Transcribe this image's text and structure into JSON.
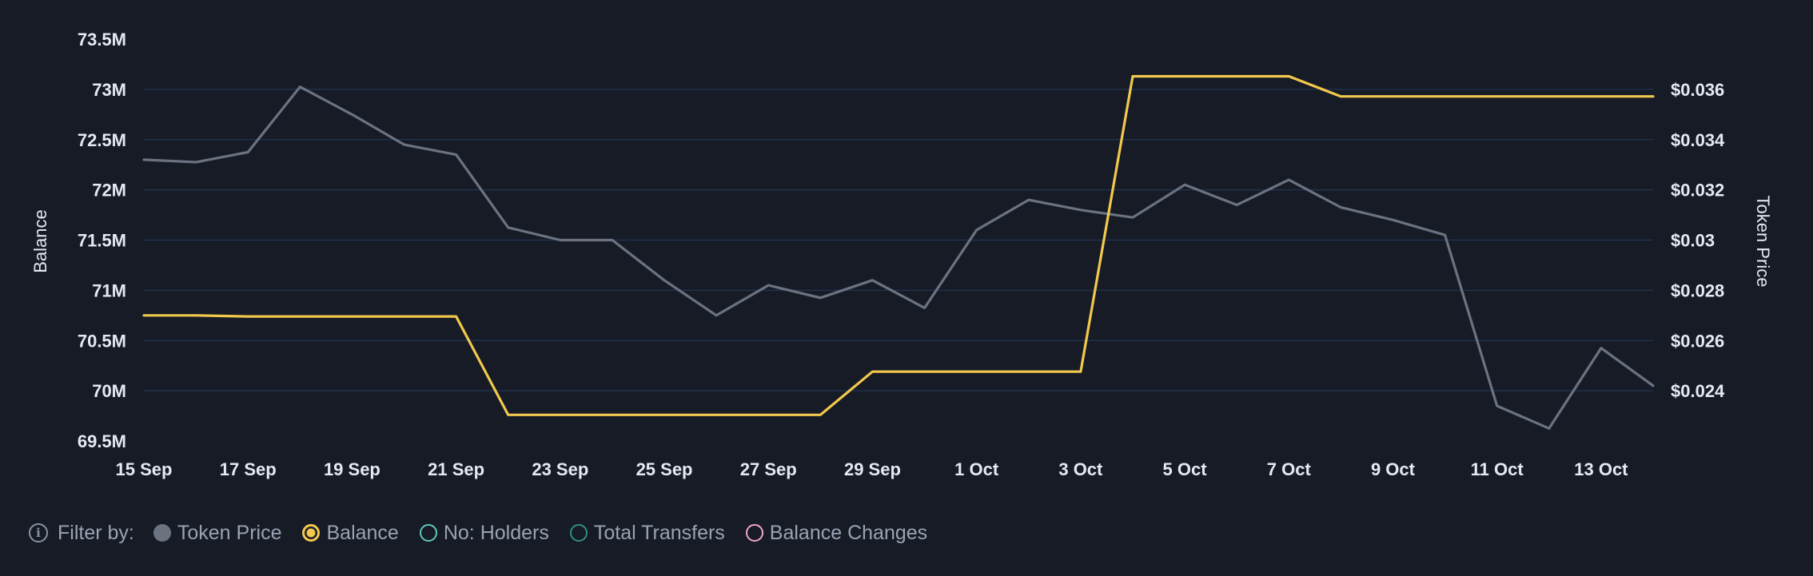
{
  "chart_data": {
    "type": "line",
    "x": [
      "15 Sep",
      "16 Sep",
      "17 Sep",
      "18 Sep",
      "19 Sep",
      "20 Sep",
      "21 Sep",
      "22 Sep",
      "23 Sep",
      "24 Sep",
      "25 Sep",
      "26 Sep",
      "27 Sep",
      "28 Sep",
      "29 Sep",
      "30 Sep",
      "1 Oct",
      "2 Oct",
      "3 Oct",
      "4 Oct",
      "5 Oct",
      "6 Oct",
      "7 Oct",
      "8 Oct",
      "9 Oct",
      "10 Oct",
      "11 Oct",
      "12 Oct",
      "13 Oct",
      "14 Oct"
    ],
    "x_tick_labels": [
      "15 Sep",
      "17 Sep",
      "19 Sep",
      "21 Sep",
      "23 Sep",
      "25 Sep",
      "27 Sep",
      "29 Sep",
      "1 Oct",
      "3 Oct",
      "5 Oct",
      "7 Oct",
      "9 Oct",
      "11 Oct",
      "13 Oct"
    ],
    "series": [
      {
        "name": "Token Price",
        "axis": "right",
        "color": "#6b7280",
        "values": [
          0.0332,
          0.0331,
          0.0335,
          0.0361,
          0.035,
          0.0338,
          0.0334,
          0.0305,
          0.03,
          0.03,
          0.0284,
          0.027,
          0.0282,
          0.0277,
          0.0284,
          0.0273,
          0.0304,
          0.0316,
          0.0312,
          0.0309,
          0.0322,
          0.0314,
          0.0324,
          0.0313,
          0.0308,
          0.0302,
          0.0234,
          0.0225,
          0.0257,
          0.0242
        ]
      },
      {
        "name": "Balance",
        "axis": "left",
        "color": "#f2c94c",
        "values": [
          70750000,
          70750000,
          70740000,
          70740000,
          70740000,
          70740000,
          70740000,
          69760000,
          69760000,
          69760000,
          69760000,
          69760000,
          69760000,
          69760000,
          70190000,
          70190000,
          70190000,
          70190000,
          70190000,
          73130000,
          73130000,
          73130000,
          73130000,
          72930000,
          72930000,
          72930000,
          72930000,
          72930000,
          72930000,
          72930000
        ]
      }
    ],
    "y_left": {
      "label": "Balance",
      "lim": [
        69500000,
        73500000
      ],
      "tick_labels": [
        "73.5M",
        "73M",
        "72.5M",
        "72M",
        "71.5M",
        "71M",
        "70.5M",
        "70M",
        "69.5M"
      ]
    },
    "y_right": {
      "label": "Token Price",
      "lim": [
        0.022,
        0.038
      ],
      "tick_labels": [
        "$0.036",
        "$0.034",
        "$0.032",
        "$0.03",
        "$0.028",
        "$0.026",
        "$0.024"
      ]
    },
    "grid": true,
    "legend_position": "bottom-left"
  },
  "legend": {
    "filter_label": "Filter by:",
    "info_icon": "info-icon",
    "items": [
      {
        "label": "Token Price",
        "color": "#6b7280",
        "style": "filled",
        "icon": "filled-circle"
      },
      {
        "label": "Balance",
        "color": "#f2c94c",
        "style": "ring-dot",
        "icon": "target-circle"
      },
      {
        "label": "No: Holders",
        "color": "#5ec8c0",
        "style": "ring",
        "icon": "hollow-circle"
      },
      {
        "label": "Total Transfers",
        "color": "#2e8f86",
        "style": "ring",
        "icon": "hollow-circle"
      },
      {
        "label": "Balance Changes",
        "color": "#f0a6c8",
        "style": "ring",
        "icon": "hollow-circle"
      }
    ]
  }
}
